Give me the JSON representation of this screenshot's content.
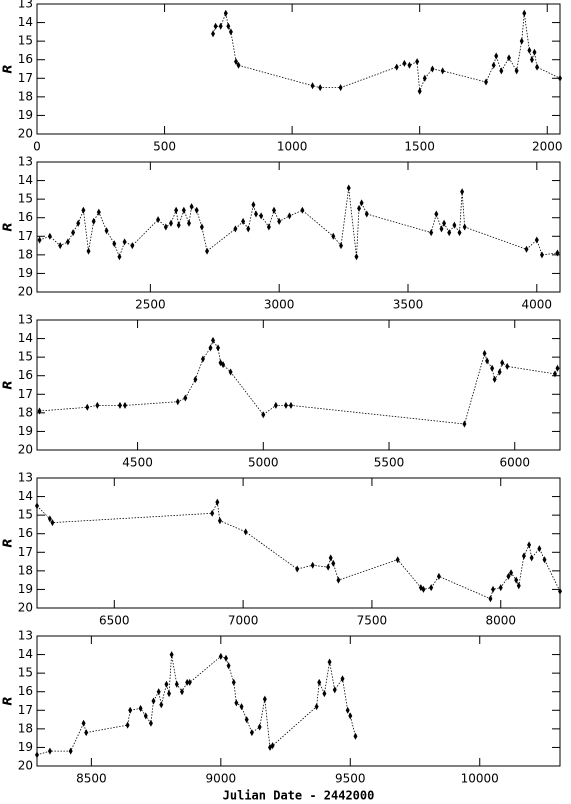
{
  "chart_data": [
    {
      "type": "line",
      "y_label": "R",
      "color": "#000000",
      "xlim": [
        0,
        2050
      ],
      "xticks": [
        0,
        500,
        1000,
        1500,
        2000
      ],
      "ylim": [
        20,
        13
      ],
      "yticks": [
        13,
        14,
        15,
        16,
        17,
        18,
        19,
        20
      ],
      "x": [
        690,
        700,
        720,
        740,
        750,
        760,
        780,
        790,
        1080,
        1110,
        1190,
        1410,
        1440,
        1460,
        1490,
        1500,
        1520,
        1550,
        1590,
        1760,
        1790,
        1800,
        1820,
        1850,
        1880,
        1900,
        1910,
        1930,
        1940,
        1950,
        1960,
        2050
      ],
      "values": [
        14.6,
        14.2,
        14.2,
        13.5,
        14.2,
        14.5,
        16.1,
        16.3,
        17.4,
        17.5,
        17.5,
        16.4,
        16.2,
        16.3,
        16.1,
        17.7,
        17.0,
        16.5,
        16.6,
        17.2,
        16.3,
        15.8,
        16.6,
        15.9,
        16.6,
        15.0,
        13.5,
        15.5,
        16.0,
        15.6,
        16.4,
        17.0
      ]
    },
    {
      "type": "line",
      "y_label": "R",
      "color": "#000000",
      "xlim": [
        2060,
        4090
      ],
      "xticks": [
        2500,
        3000,
        3500,
        4000
      ],
      "ylim": [
        20,
        13
      ],
      "yticks": [
        13,
        14,
        15,
        16,
        17,
        18,
        19,
        20
      ],
      "x": [
        2070,
        2110,
        2150,
        2180,
        2200,
        2220,
        2240,
        2260,
        2280,
        2300,
        2330,
        2360,
        2380,
        2400,
        2430,
        2530,
        2560,
        2580,
        2600,
        2610,
        2630,
        2650,
        2660,
        2680,
        2700,
        2720,
        2830,
        2860,
        2880,
        2900,
        2910,
        2930,
        2960,
        2980,
        3000,
        3040,
        3090,
        3210,
        3240,
        3270,
        3300,
        3310,
        3320,
        3340,
        3590,
        3610,
        3630,
        3640,
        3660,
        3680,
        3700,
        3710,
        3720,
        3960,
        4000,
        4020,
        4080
      ],
      "values": [
        17.2,
        17.0,
        17.5,
        17.3,
        16.8,
        16.3,
        15.6,
        17.8,
        16.2,
        15.7,
        16.7,
        17.4,
        18.1,
        17.3,
        17.5,
        16.1,
        16.5,
        16.3,
        15.6,
        16.4,
        15.6,
        16.3,
        15.4,
        15.6,
        16.5,
        17.8,
        16.6,
        16.2,
        16.6,
        15.3,
        15.8,
        15.9,
        16.5,
        15.6,
        16.2,
        15.9,
        15.6,
        17.0,
        17.5,
        14.4,
        18.1,
        15.5,
        15.2,
        15.8,
        16.8,
        15.8,
        16.6,
        16.3,
        16.8,
        16.4,
        16.8,
        14.6,
        16.5,
        17.7,
        17.2,
        18.0,
        17.9
      ]
    },
    {
      "type": "line",
      "y_label": "R",
      "color": "#000000",
      "xlim": [
        4100,
        6180
      ],
      "xticks": [
        4500,
        5000,
        5500,
        6000
      ],
      "ylim": [
        20,
        13
      ],
      "yticks": [
        13,
        14,
        15,
        16,
        17,
        18,
        19,
        20
      ],
      "x": [
        4110,
        4300,
        4340,
        4430,
        4450,
        4660,
        4690,
        4730,
        4760,
        4790,
        4800,
        4820,
        4830,
        4840,
        4870,
        5000,
        5050,
        5090,
        5110,
        5800,
        5880,
        5890,
        5910,
        5920,
        5940,
        5950,
        5970,
        6160,
        6170
      ],
      "values": [
        17.9,
        17.7,
        17.6,
        17.6,
        17.6,
        17.4,
        17.2,
        16.2,
        15.1,
        14.5,
        14.1,
        14.5,
        15.3,
        15.4,
        15.8,
        18.1,
        17.6,
        17.6,
        17.6,
        18.6,
        14.8,
        15.2,
        15.6,
        16.2,
        15.8,
        15.3,
        15.5,
        15.9,
        15.6
      ]
    },
    {
      "type": "line",
      "y_label": "R",
      "color": "#000000",
      "xlim": [
        6200,
        8230
      ],
      "xticks": [
        6500,
        7000,
        7500,
        8000
      ],
      "ylim": [
        20,
        13
      ],
      "yticks": [
        13,
        14,
        15,
        16,
        17,
        18,
        19,
        20
      ],
      "x": [
        6200,
        6250,
        6260,
        6880,
        6900,
        6910,
        7010,
        7210,
        7270,
        7330,
        7340,
        7350,
        7370,
        7600,
        7690,
        7700,
        7730,
        7760,
        7960,
        7970,
        8000,
        8030,
        8040,
        8060,
        8070,
        8090,
        8110,
        8120,
        8150,
        8170,
        8230
      ],
      "values": [
        14.5,
        15.2,
        15.4,
        14.9,
        14.3,
        15.3,
        15.9,
        17.9,
        17.7,
        17.8,
        17.3,
        17.6,
        18.5,
        17.4,
        18.9,
        19.0,
        18.9,
        18.3,
        19.5,
        19.0,
        18.9,
        18.3,
        18.1,
        18.5,
        18.8,
        17.2,
        16.6,
        17.3,
        16.8,
        17.4,
        19.1
      ]
    },
    {
      "type": "line",
      "y_label": "R",
      "x_label": "Julian Date - 2442000",
      "color": "#000000",
      "xlim": [
        8290,
        10310
      ],
      "xticks": [
        8500,
        9000,
        9500,
        10000
      ],
      "ylim": [
        20,
        13
      ],
      "yticks": [
        13,
        14,
        15,
        16,
        17,
        18,
        19,
        20
      ],
      "x": [
        8290,
        8340,
        8420,
        8470,
        8480,
        8640,
        8650,
        8690,
        8710,
        8730,
        8740,
        8760,
        8770,
        8790,
        8800,
        8810,
        8830,
        8850,
        8870,
        8880,
        9000,
        9020,
        9030,
        9050,
        9060,
        9080,
        9100,
        9120,
        9150,
        9170,
        9190,
        9200,
        9370,
        9380,
        9400,
        9420,
        9440,
        9470,
        9490,
        9500,
        9520
      ],
      "values": [
        19.4,
        19.2,
        19.2,
        17.7,
        18.2,
        17.8,
        17.0,
        16.9,
        17.3,
        17.7,
        16.5,
        16.0,
        16.7,
        15.6,
        16.1,
        14.0,
        15.6,
        16.0,
        15.5,
        15.5,
        14.1,
        14.2,
        14.6,
        15.5,
        16.6,
        16.8,
        17.5,
        18.2,
        17.9,
        16.4,
        19.0,
        18.9,
        16.8,
        15.5,
        16.1,
        14.4,
        15.9,
        15.3,
        17.0,
        17.3,
        18.4
      ]
    }
  ]
}
